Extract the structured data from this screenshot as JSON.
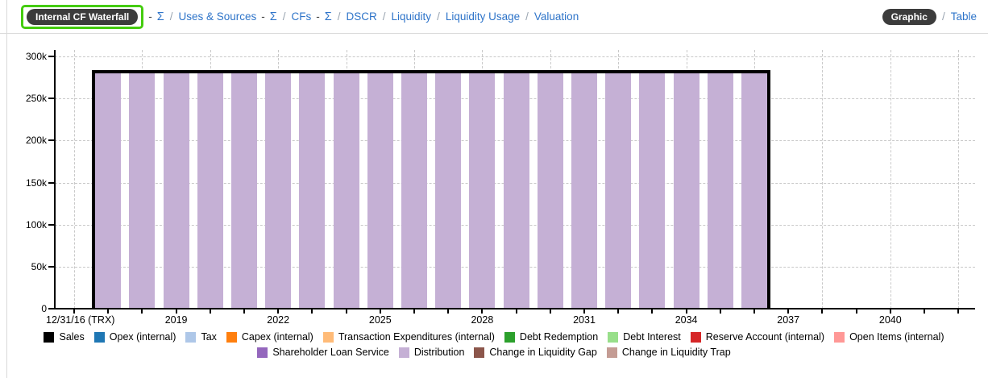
{
  "nav": {
    "breadcrumb": [
      {
        "type": "active-pill",
        "label": "Internal CF Waterfall",
        "highlighted": true
      },
      {
        "type": "dash",
        "label": "-"
      },
      {
        "type": "sigma-link",
        "label": "Σ"
      },
      {
        "type": "slash",
        "label": "/"
      },
      {
        "type": "link",
        "label": "Uses & Sources"
      },
      {
        "type": "dash",
        "label": "-"
      },
      {
        "type": "sigma-link",
        "label": "Σ"
      },
      {
        "type": "slash",
        "label": "/"
      },
      {
        "type": "link",
        "label": "CFs"
      },
      {
        "type": "dash",
        "label": "-"
      },
      {
        "type": "sigma-link",
        "label": "Σ"
      },
      {
        "type": "slash",
        "label": "/"
      },
      {
        "type": "link",
        "label": "DSCR"
      },
      {
        "type": "slash",
        "label": "/"
      },
      {
        "type": "link",
        "label": "Liquidity"
      },
      {
        "type": "slash",
        "label": "/"
      },
      {
        "type": "link",
        "label": "Liquidity Usage"
      },
      {
        "type": "slash",
        "label": "/"
      },
      {
        "type": "link",
        "label": "Valuation"
      }
    ],
    "view_toggle": {
      "active": "Graphic",
      "separator": "/",
      "inactive": "Table"
    }
  },
  "colors": {
    "link_blue": "#2e74c9",
    "pill_bg": "#3c3c3c",
    "highlight_green": "#44cc0e",
    "grid": "#c9c9c9",
    "axis": "#000000",
    "bar_fill": "#c5b0d5"
  },
  "chart_data": {
    "type": "bar",
    "title": "",
    "xlabel": "",
    "ylabel": "",
    "ylim": [
      0,
      300000
    ],
    "grid": true,
    "y_ticks": [
      {
        "value": 0,
        "label": "0"
      },
      {
        "value": 50000,
        "label": "50k"
      },
      {
        "value": 100000,
        "label": "100k"
      },
      {
        "value": 150000,
        "label": "150k"
      },
      {
        "value": 200000,
        "label": "200k"
      },
      {
        "value": 250000,
        "label": "250k"
      },
      {
        "value": 300000,
        "label": "300k"
      }
    ],
    "x_axis": {
      "minor_tick_start": 2016,
      "minor_tick_end": 2042,
      "minor_tick_step": 1,
      "grid_start": 2016,
      "grid_end": 2042,
      "grid_step": 2,
      "label_ticks": [
        {
          "year": 2016,
          "label": "12/31/16 (TRX)",
          "align": "start"
        },
        {
          "year": 2019,
          "label": "2019",
          "align": "center"
        },
        {
          "year": 2022,
          "label": "2022",
          "align": "center"
        },
        {
          "year": 2025,
          "label": "2025",
          "align": "center"
        },
        {
          "year": 2028,
          "label": "2028",
          "align": "center"
        },
        {
          "year": 2031,
          "label": "2031",
          "align": "center"
        },
        {
          "year": 2034,
          "label": "2034",
          "align": "center"
        },
        {
          "year": 2037,
          "label": "2037",
          "align": "center"
        },
        {
          "year": 2040,
          "label": "2040",
          "align": "center"
        }
      ]
    },
    "series": [
      {
        "name": "Sales",
        "render": "outline-box",
        "color": "#000000",
        "value": 280000,
        "start_year": 2017,
        "end_year": 2036
      },
      {
        "name": "Distribution",
        "render": "bars",
        "color": "#c5b0d5",
        "years": [
          2017,
          2018,
          2019,
          2020,
          2021,
          2022,
          2023,
          2024,
          2025,
          2026,
          2027,
          2028,
          2029,
          2030,
          2031,
          2032,
          2033,
          2034,
          2035,
          2036
        ],
        "values": [
          280000,
          280000,
          280000,
          280000,
          280000,
          280000,
          280000,
          280000,
          280000,
          280000,
          280000,
          280000,
          280000,
          280000,
          280000,
          280000,
          280000,
          280000,
          280000,
          280000
        ]
      }
    ],
    "legend_position": "bottom",
    "legend_rows": [
      [
        {
          "label": "Sales",
          "color": "#000000"
        },
        {
          "label": "Opex (internal)",
          "color": "#1f77b4"
        },
        {
          "label": "Tax",
          "color": "#aec7e8"
        },
        {
          "label": "Capex (internal)",
          "color": "#ff7f0e"
        },
        {
          "label": "Transaction Expenditures (internal)",
          "color": "#ffbb78"
        },
        {
          "label": "Debt Redemption",
          "color": "#2ca02c"
        },
        {
          "label": "Debt Interest",
          "color": "#98df8a"
        },
        {
          "label": "Reserve Account (internal)",
          "color": "#d62728"
        },
        {
          "label": "Open Items (internal)",
          "color": "#ff9896"
        }
      ],
      [
        {
          "label": "Shareholder Loan Service",
          "color": "#9467bd"
        },
        {
          "label": "Distribution",
          "color": "#c5b0d5"
        },
        {
          "label": "Change in Liquidity Gap",
          "color": "#8c564b"
        },
        {
          "label": "Change in Liquidity Trap",
          "color": "#c49c94"
        }
      ]
    ]
  }
}
